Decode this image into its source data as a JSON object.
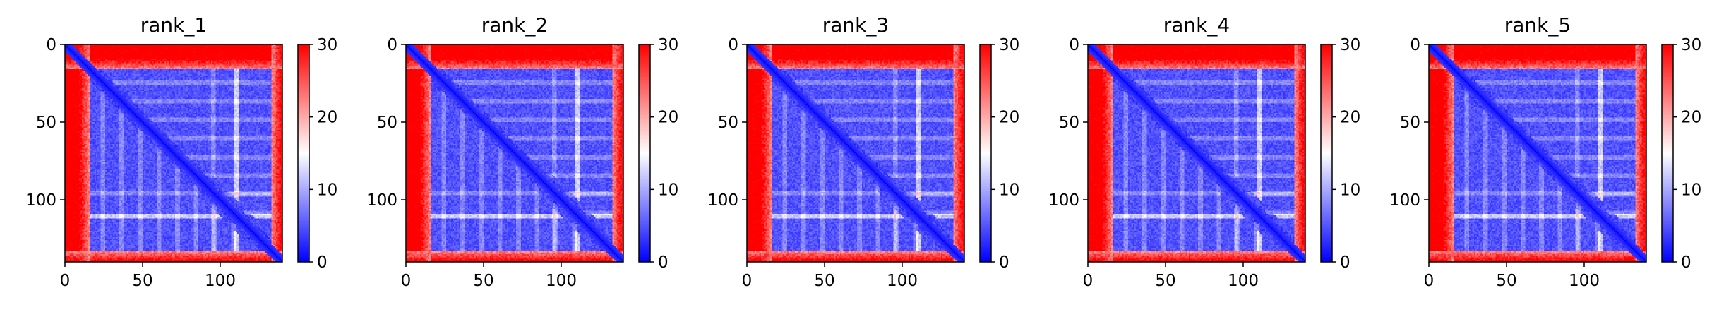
{
  "chart_data": [
    {
      "type": "heatmap",
      "title": "rank_1",
      "x_ticks": [
        "0",
        "50",
        "100"
      ],
      "y_ticks": [
        "0",
        "50",
        "100"
      ],
      "colorbar": {
        "ticks": [
          "0",
          "10",
          "20",
          "30"
        ],
        "range": [
          0,
          30
        ],
        "colormap": "bwr"
      },
      "matrix_size": 140
    },
    {
      "type": "heatmap",
      "title": "rank_2",
      "x_ticks": [
        "0",
        "50",
        "100"
      ],
      "y_ticks": [
        "0",
        "50",
        "100"
      ],
      "colorbar": {
        "ticks": [
          "0",
          "10",
          "20",
          "30"
        ],
        "range": [
          0,
          30
        ],
        "colormap": "bwr"
      },
      "matrix_size": 140
    },
    {
      "type": "heatmap",
      "title": "rank_3",
      "x_ticks": [
        "0",
        "50",
        "100"
      ],
      "y_ticks": [
        "0",
        "50",
        "100"
      ],
      "colorbar": {
        "ticks": [
          "0",
          "10",
          "20",
          "30"
        ],
        "range": [
          0,
          30
        ],
        "colormap": "bwr"
      },
      "matrix_size": 140
    },
    {
      "type": "heatmap",
      "title": "rank_4",
      "x_ticks": [
        "0",
        "50",
        "100"
      ],
      "y_ticks": [
        "0",
        "50",
        "100"
      ],
      "colorbar": {
        "ticks": [
          "0",
          "10",
          "20",
          "30"
        ],
        "range": [
          0,
          30
        ],
        "colormap": "bwr"
      },
      "matrix_size": 140
    },
    {
      "type": "heatmap",
      "title": "rank_5",
      "x_ticks": [
        "0",
        "50",
        "100"
      ],
      "y_ticks": [
        "0",
        "50",
        "100"
      ],
      "colorbar": {
        "ticks": [
          "0",
          "10",
          "20",
          "30"
        ],
        "range": [
          0,
          30
        ],
        "colormap": "bwr"
      },
      "matrix_size": 140
    }
  ],
  "colors": {
    "low": "#0000ff",
    "mid": "#ffffff",
    "high": "#ff0000"
  }
}
